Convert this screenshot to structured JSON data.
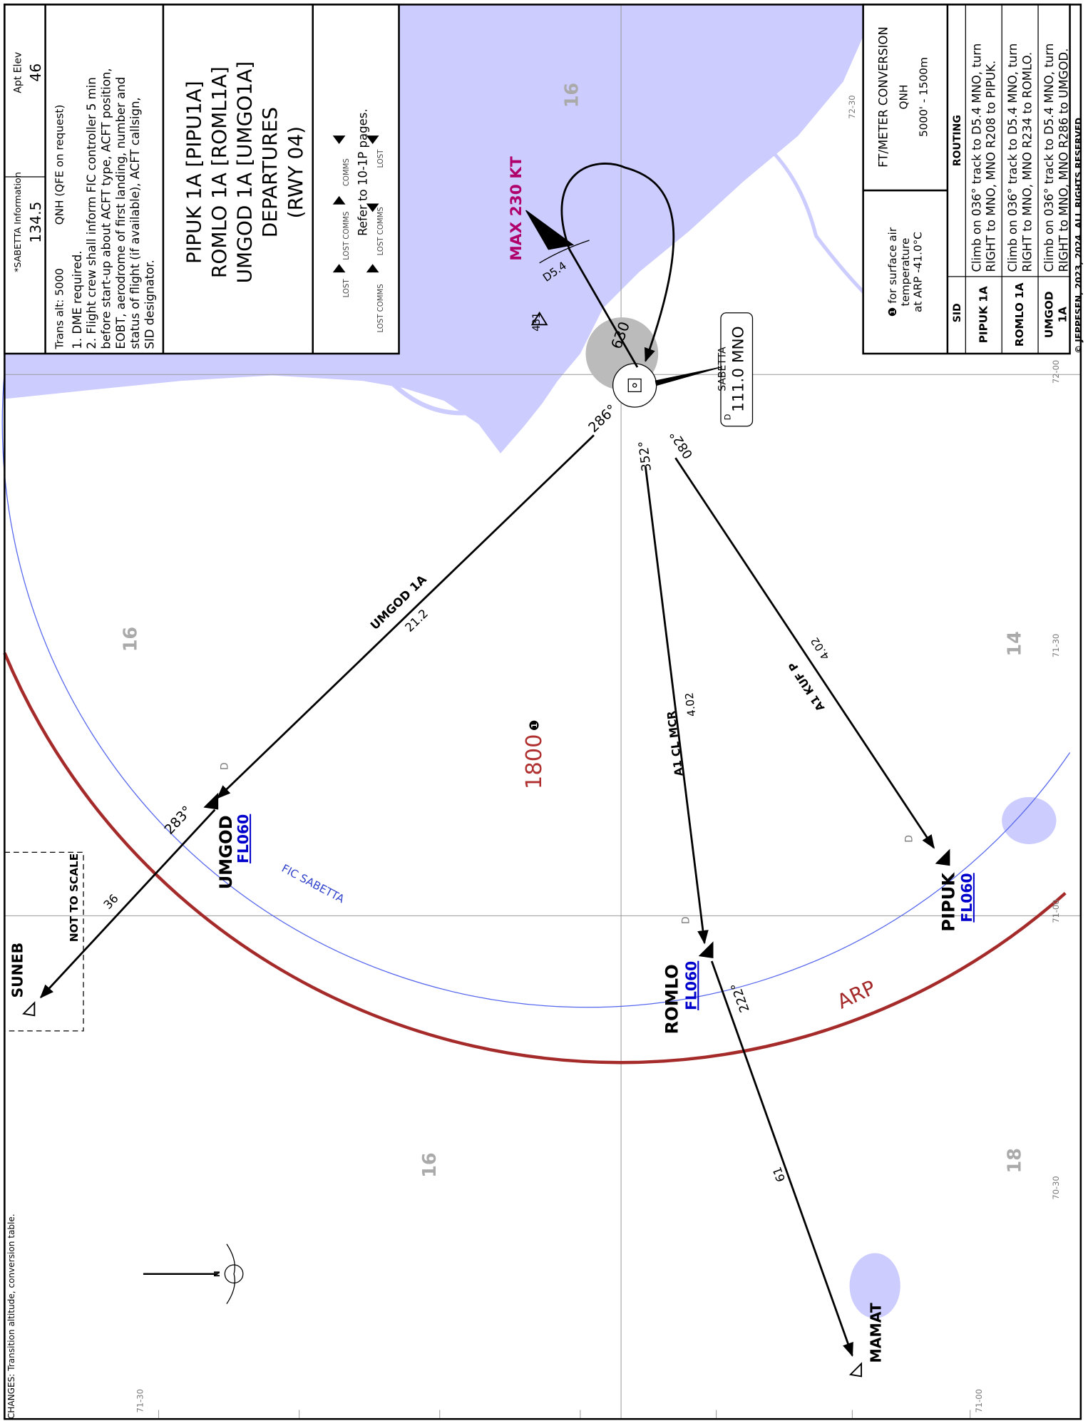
{
  "header": {
    "info_label": "*SABETTA Information",
    "info_freq": "134.5",
    "elev_label": "Apt Elev",
    "elev": "46",
    "trans_alt": "Trans alt: 5000",
    "qnh": "QNH (QFE on request)"
  },
  "notes": [
    "1. DME required.",
    "2. Flight crew shall inform FIC controller 5 min",
    "before start-up about ACFT type, ACFT position,",
    "EOBT, aerodrome of first landing, number and",
    "status of flight (if available), ACFT callsign,",
    "SID designator."
  ],
  "title": [
    "PIPUK 1A [PIPU1A]",
    "ROMLO 1A [ROML1A]",
    "UMGOD 1A [UMGO1A]",
    "DEPARTURES",
    "(RWY 04)"
  ],
  "lost_comms": {
    "labels": [
      "LOST",
      "LOST COMMS",
      "COMMS",
      "LOST COMMS",
      "LOST COMMS",
      "LOST"
    ],
    "refer": "Refer to 10-1P pages."
  },
  "conversion": {
    "title": "FT/METER CONVERSION",
    "sub": "QNH",
    "row": "5000'  -  1500m"
  },
  "temp_note": [
    "❶ for surface air",
    "temperature",
    "at ARP -41.0°C"
  ],
  "routing_table": {
    "headers": [
      "SID",
      "ROUTING"
    ],
    "rows": [
      {
        "sid": [
          "PIPUK 1A"
        ],
        "routing": [
          "Climb on 036° track to D5.4 MNO, turn",
          "RIGHT to MNO, MNO R208 to PIPUK."
        ]
      },
      {
        "sid": [
          "ROMLO 1A"
        ],
        "routing": [
          "Climb on 036° track to D5.4 MNO, turn",
          "RIGHT to MNO, MNO R234 to ROMLO."
        ]
      },
      {
        "sid": [
          "UMGOD",
          "1A"
        ],
        "routing": [
          "Climb on 036° track to D5.4 MNO, turn",
          "RIGHT to MNO, MNO R286 to UMGOD."
        ]
      }
    ]
  },
  "copyright": "© JEPPESEN, 2023, 2024. ALL RIGHTS RESERVED.",
  "changes": "CHANGES: Transition altitude, conversion table.",
  "map": {
    "waypoints": [
      {
        "name": "UMGOD",
        "alt": "FL060"
      },
      {
        "name": "ROMLO",
        "alt": "FL060"
      },
      {
        "name": "PIPUK",
        "alt": "FL060"
      }
    ],
    "fixes": [
      "SUNEB",
      "MAMAT"
    ],
    "navaid": {
      "name": "SABETTA",
      "freq": "111.0 MNO",
      "dme": "D"
    },
    "speed": "MAX 230 KT",
    "dme_fix": "D5.4",
    "obstacles": [
      "630",
      "431"
    ],
    "msa": "1800",
    "msa_note": "❶",
    "routes": [
      {
        "name": "UMGOD 1A",
        "dist": "21.2",
        "course": "286°"
      },
      {
        "name": "A1 CL MCR",
        "dist": "4.02",
        "course": "352°"
      },
      {
        "name": "A1 KUF P",
        "dist": "4.02",
        "course": "082°"
      }
    ],
    "legs": [
      {
        "course": "283°",
        "dist": "36"
      },
      {
        "course": "222°",
        "dist": "61"
      }
    ],
    "dme_marks": [
      "D",
      "D",
      "D"
    ],
    "airspace": "FIC SABETTA",
    "arp": "ARP",
    "not_to_scale": "NOT TO SCALE",
    "grid_mora": [
      "16",
      "16",
      "16",
      "14",
      "18"
    ],
    "lat_labels": [
      "72-30",
      "72-00",
      "71-30",
      "71-00",
      "70-30"
    ],
    "lon_labels": [
      "71-30",
      "71-00"
    ],
    "north": "N"
  }
}
